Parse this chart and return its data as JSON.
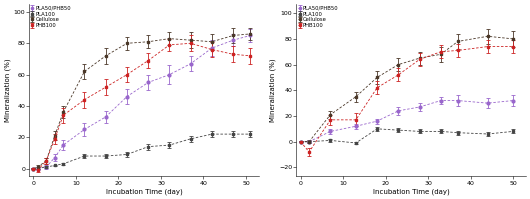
{
  "left": {
    "xlabel": "Incubation Time (day)",
    "ylabel": "Mineralization (%)",
    "ylim": [
      -5,
      105
    ],
    "xlim": [
      -1,
      53
    ],
    "yticks": [
      0,
      20,
      40,
      60,
      80,
      100
    ],
    "xticks": [
      0,
      10,
      20,
      30,
      40,
      50
    ],
    "series": {
      "PLA50/PHB50": {
        "color": "#9966cc",
        "marker": "o",
        "x": [
          0,
          1,
          3,
          5,
          7,
          12,
          17,
          22,
          27,
          32,
          37,
          42,
          47,
          51
        ],
        "y": [
          0,
          0,
          1,
          7,
          15,
          25,
          33,
          46,
          55,
          60,
          67,
          77,
          82,
          85
        ],
        "yerr": [
          0.5,
          1,
          1.5,
          2,
          3,
          4,
          4,
          5,
          5,
          6,
          5,
          5,
          4,
          4
        ]
      },
      "PLA100": {
        "color": "#444444",
        "marker": "s",
        "x": [
          0,
          1,
          3,
          5,
          7,
          12,
          17,
          22,
          27,
          32,
          37,
          42,
          47,
          51
        ],
        "y": [
          0,
          0.5,
          1,
          2,
          3,
          8,
          8,
          9,
          14,
          15,
          19,
          22,
          22,
          22
        ],
        "yerr": [
          0.3,
          0.5,
          0.5,
          0.5,
          0.8,
          1,
          1,
          1.5,
          2,
          2,
          2,
          2,
          2,
          2
        ]
      },
      "Cellulose": {
        "color": "#4a3728",
        "marker": "s",
        "x": [
          0,
          1,
          3,
          5,
          7,
          12,
          17,
          22,
          27,
          32,
          37,
          42,
          47,
          51
        ],
        "y": [
          0,
          1,
          5,
          21,
          36,
          62,
          72,
          80,
          81,
          83,
          82,
          81,
          85,
          86
        ],
        "yerr": [
          0.5,
          1,
          2,
          3,
          4,
          5,
          5,
          4,
          4,
          4,
          5,
          5,
          5,
          4
        ]
      },
      "PHB100": {
        "color": "#cc2222",
        "marker": "s",
        "x": [
          0,
          1,
          3,
          5,
          7,
          12,
          17,
          22,
          27,
          32,
          37,
          42,
          47,
          51
        ],
        "y": [
          0,
          -1,
          5,
          19,
          34,
          44,
          52,
          60,
          69,
          79,
          80,
          76,
          73,
          72
        ],
        "yerr": [
          0.5,
          1,
          2,
          3,
          5,
          5,
          5,
          5,
          5,
          4,
          5,
          5,
          5,
          5
        ]
      }
    }
  },
  "right": {
    "xlabel": "Incubation Time (day)",
    "ylabel": "Mineralization (%)",
    "ylim": [
      -27,
      107
    ],
    "xlim": [
      -1,
      53
    ],
    "yticks": [
      -20,
      0,
      20,
      40,
      60,
      80,
      100
    ],
    "xticks": [
      0,
      10,
      20,
      30,
      40,
      50
    ],
    "series": {
      "PLA50/PHB50": {
        "color": "#9966cc",
        "marker": "o",
        "x": [
          0,
          2,
          7,
          13,
          18,
          23,
          28,
          33,
          37,
          44,
          50
        ],
        "y": [
          0,
          0,
          8,
          12,
          16,
          24,
          27,
          32,
          32,
          30,
          32
        ],
        "yerr": [
          0.5,
          1,
          2,
          2,
          2,
          3,
          3,
          3,
          4,
          4,
          4
        ]
      },
      "PLA100": {
        "color": "#444444",
        "marker": "s",
        "x": [
          0,
          2,
          7,
          13,
          18,
          23,
          28,
          33,
          37,
          44,
          50
        ],
        "y": [
          0,
          0,
          1,
          -1,
          10,
          9,
          8,
          8,
          7,
          6,
          8
        ],
        "yerr": [
          0.3,
          0.5,
          1,
          1,
          1.5,
          1.5,
          1.5,
          1.5,
          1.5,
          1.5,
          1.5
        ]
      },
      "Cellulose": {
        "color": "#4a3728",
        "marker": "s",
        "x": [
          0,
          2,
          7,
          13,
          18,
          23,
          28,
          33,
          37,
          44,
          50
        ],
        "y": [
          0,
          0,
          21,
          35,
          50,
          60,
          65,
          68,
          78,
          82,
          80
        ],
        "yerr": [
          0.5,
          1,
          3,
          4,
          5,
          5,
          5,
          6,
          6,
          6,
          6
        ]
      },
      "PHB100": {
        "color": "#cc2222",
        "marker": "s",
        "x": [
          0,
          2,
          7,
          13,
          18,
          23,
          28,
          33,
          37,
          44,
          50
        ],
        "y": [
          0,
          -8,
          17,
          17,
          42,
          52,
          64,
          70,
          71,
          74,
          74
        ],
        "yerr": [
          0.5,
          3,
          4,
          5,
          5,
          5,
          5,
          5,
          5,
          5,
          5
        ]
      }
    }
  },
  "legend_order": [
    "PLA50/PHB50",
    "PLA100",
    "Cellulose",
    "PHB100"
  ],
  "background_color": "#ffffff"
}
